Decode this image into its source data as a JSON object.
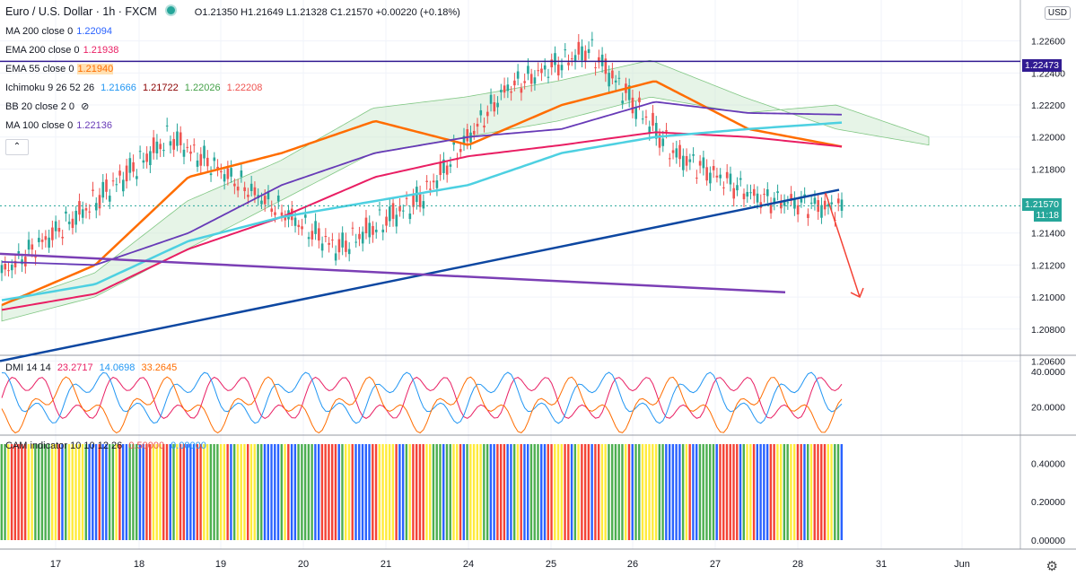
{
  "header": {
    "symbol": "Euro / U.S. Dollar · 1h · FXCM",
    "ohlc": "O1.21350 H1.21649 L1.21328 C1.21570 +0.00220 (+0.18%)"
  },
  "indicators": [
    {
      "label": "MA 200 close 0",
      "value": "1.22094",
      "color": "#2962ff"
    },
    {
      "label": "EMA 200 close 0",
      "value": "1.21938",
      "color": "#e91e63"
    },
    {
      "label": "EMA 55 close 0",
      "value": "1.21940",
      "color": "#ff6d00"
    },
    {
      "label": "Ichimoku 9 26 52 26",
      "values": [
        "1.21666",
        "1.21722",
        "1.22026",
        "1.22208"
      ],
      "colors": [
        "#2196f3",
        "#8b0000",
        "#43a047",
        "#ef5350"
      ]
    },
    {
      "label": "BB 20 close 2 0",
      "value": "",
      "color": "#131722"
    },
    {
      "label": "MA 100 close 0",
      "value": "1.22136",
      "color": "#673ab7"
    }
  ],
  "currency_button": "USD",
  "price_tags": {
    "horizontal_line": "1.22473",
    "last_price": "1.21570",
    "countdown": "11:18",
    "colors": {
      "line": "#311b92",
      "last": "#26a69a"
    }
  },
  "chart_data": {
    "type": "candlestick",
    "x_tick_labels": [
      "17",
      "18",
      "19",
      "20",
      "21",
      "24",
      "25",
      "26",
      "27",
      "28",
      "31",
      "Jun"
    ],
    "y_tick_labels": [
      "1.20600",
      "1.20800",
      "1.21000",
      "1.21200",
      "1.21400",
      "1.21800",
      "1.22000",
      "1.22200",
      "1.22400",
      "1.22600"
    ],
    "ylim": [
      1.2058,
      1.228
    ],
    "horizontal_line": 1.22473,
    "last_price": 1.2157,
    "key_prices": [
      1.2115,
      1.2155,
      1.22,
      1.2165,
      1.213,
      1.2162,
      1.223,
      1.2255,
      1.219,
      1.2162,
      1.2155
    ],
    "ema55": [
      1.2095,
      1.212,
      1.2175,
      1.219,
      1.221,
      1.2195,
      1.222,
      1.2235,
      1.2205,
      1.2194
    ],
    "ema200": [
      1.2092,
      1.2102,
      1.213,
      1.215,
      1.2175,
      1.2188,
      1.2195,
      1.2203,
      1.22,
      1.2194
    ],
    "ma200": [
      1.2098,
      1.2108,
      1.2135,
      1.215,
      1.216,
      1.217,
      1.219,
      1.22,
      1.2205,
      1.2209
    ],
    "ma100": [
      1.2122,
      1.212,
      1.214,
      1.217,
      1.219,
      1.22,
      1.2205,
      1.2222,
      1.2215,
      1.2214
    ],
    "trendline_up": [
      [
        0,
        1.206
      ],
      [
        935,
        1.2167
      ]
    ],
    "trendline_flat": [
      [
        0,
        1.2127
      ],
      [
        875,
        1.2103
      ]
    ],
    "arrow_target": 1.21,
    "dmi": {
      "label": "DMI 14 14",
      "values": [
        "23.2717",
        "14.0698",
        "33.2645"
      ],
      "colors": [
        "#e91e63",
        "#2196f3",
        "#ff6d00"
      ],
      "y_ticks": [
        "40.0000",
        "20.0000"
      ]
    },
    "cam": {
      "label": "CAM indicator 10 10 12 26",
      "values": [
        "0.50000",
        "0.00000"
      ],
      "colors": [
        "#ef5350",
        "#2196f3"
      ],
      "y_ticks": [
        "0.40000",
        "0.20000",
        "0.00000"
      ],
      "palette": [
        "#4caf50",
        "#ffeb3b",
        "#f44336",
        "#2962ff"
      ]
    }
  }
}
